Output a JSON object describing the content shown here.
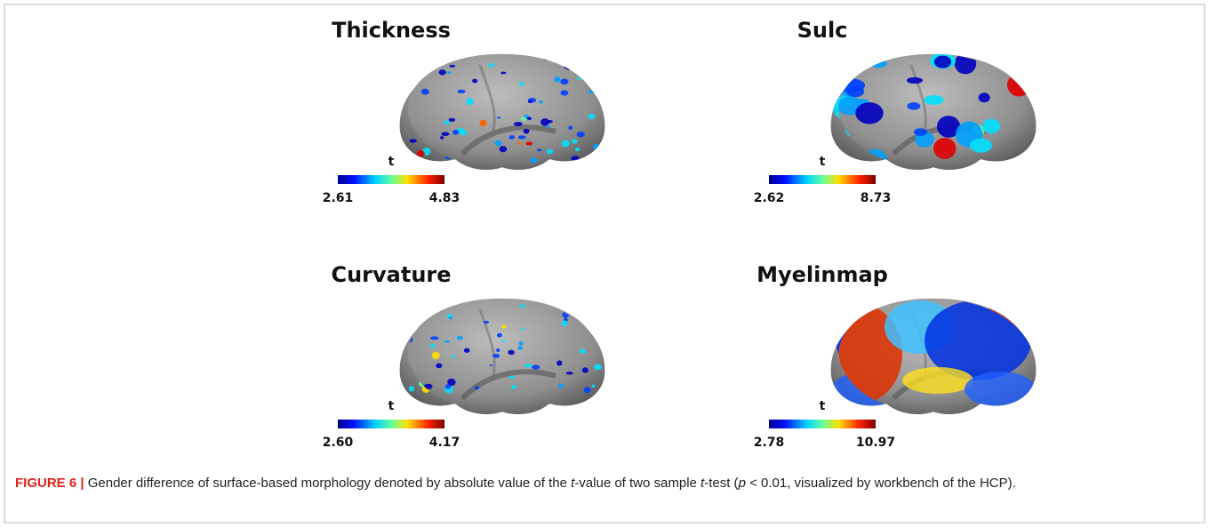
{
  "panels": [
    {
      "title": "Thickness",
      "colorbar_label": "t",
      "min": "2.61",
      "max": "4.83"
    },
    {
      "title": "Sulc",
      "colorbar_label": "t",
      "min": "2.62",
      "max": "8.73"
    },
    {
      "title": "Curvature",
      "colorbar_label": "t",
      "min": "2.60",
      "max": "4.17"
    },
    {
      "title": "Myelinmap",
      "colorbar_label": "t",
      "min": "2.78",
      "max": "10.97"
    }
  ],
  "caption": {
    "label": "FIGURE 6 |",
    "parts": [
      "Gender difference of surface-based morphology denoted by absolute value of the ",
      "t",
      "-value of two sample ",
      "t",
      "-test (",
      "p",
      " <  0.01, visualized by workbench of the HCP)."
    ]
  }
}
